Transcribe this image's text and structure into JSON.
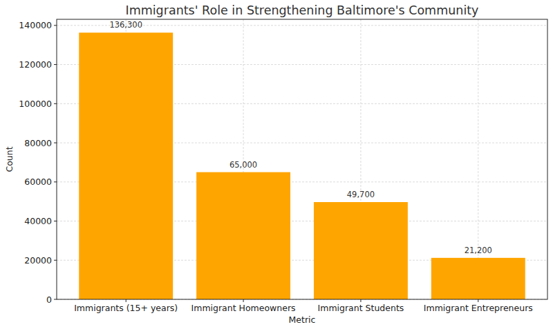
{
  "chart_data": {
    "type": "bar",
    "title": "Immigrants' Role in Strengthening Baltimore's Community",
    "x_label": "Metric",
    "y_label": "Count",
    "categories": [
      "Immigrants (15+ years)",
      "Immigrant Homeowners",
      "Immigrant Students",
      "Immigrant Entrepreneurs"
    ],
    "values": [
      136300,
      65000,
      49700,
      21200
    ],
    "value_labels": [
      "136,300",
      "65,000",
      "49,700",
      "21,200"
    ],
    "color": "#ffa500",
    "ylim": [
      0,
      143115
    ],
    "yticks": [
      0,
      20000,
      40000,
      60000,
      80000,
      100000,
      120000,
      140000
    ],
    "grid": true,
    "data_labels": true
  }
}
